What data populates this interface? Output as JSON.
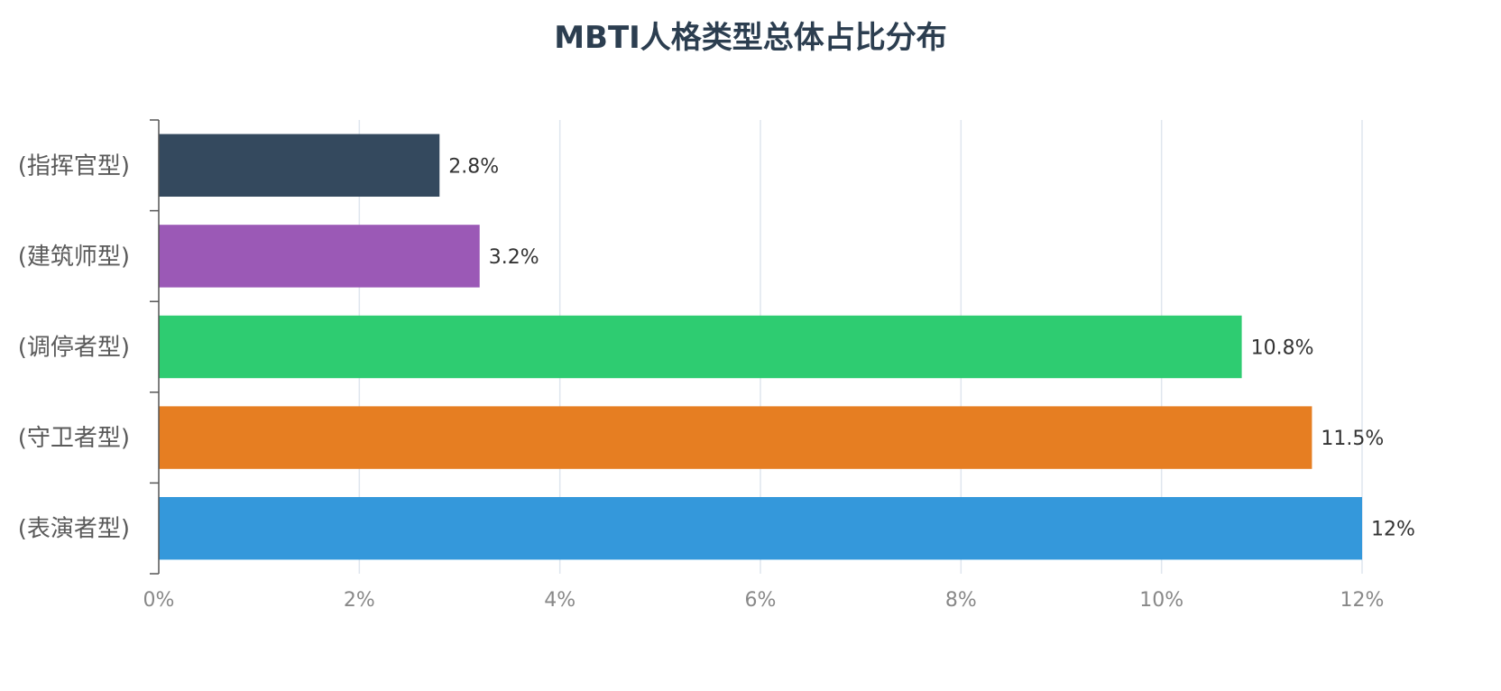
{
  "chart_data": {
    "type": "bar",
    "orientation": "horizontal",
    "title": "MBTI人格类型总体占比分布",
    "categories": [
      "(指挥官型)",
      "(建筑师型)",
      "(调停者型)",
      "(守卫者型)",
      "(表演者型)"
    ],
    "values": [
      2.8,
      3.2,
      10.8,
      11.5,
      12
    ],
    "data_labels": [
      "2.8%",
      "3.2%",
      "10.8%",
      "11.5%",
      "12%"
    ],
    "colors": [
      "#34495e",
      "#9b59b6",
      "#2ecc71",
      "#e67e22",
      "#3498db"
    ],
    "x_ticks": [
      "0%",
      "2%",
      "4%",
      "6%",
      "8%",
      "10%",
      "12%"
    ],
    "x_tick_values": [
      0,
      2,
      4,
      6,
      8,
      10,
      12
    ],
    "xlim": [
      0,
      12
    ],
    "xlabel": "",
    "ylabel": "",
    "grid": "vertical",
    "grid_color": "#dfe6ee",
    "axis_color": "#555555"
  }
}
